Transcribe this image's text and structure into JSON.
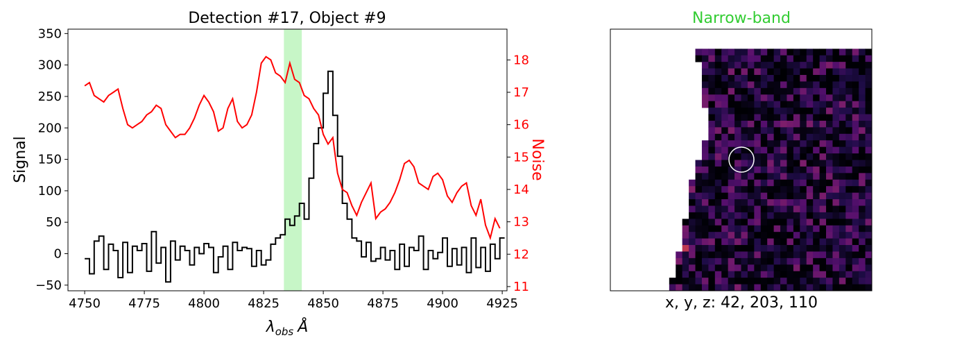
{
  "chart_data": [
    {
      "type": "line",
      "title": "Detection #17, Object #9",
      "xlabel_base": "λ",
      "xlabel_sub": "obs",
      "xlabel_unit": "Å",
      "ylabel": "Signal",
      "y2label": "Noise",
      "xlim": [
        4743,
        4927
      ],
      "ylim": [
        -59,
        357
      ],
      "y2lim": [
        10.87,
        18.95
      ],
      "xticks": [
        4750,
        4775,
        4800,
        4825,
        4850,
        4875,
        4900,
        4925
      ],
      "yticks": [
        -50,
        0,
        50,
        100,
        150,
        200,
        250,
        300,
        350
      ],
      "y2ticks": [
        11,
        12,
        13,
        14,
        15,
        16,
        17,
        18
      ],
      "colors": {
        "signal": "#000000",
        "noise": "#ff0000",
        "highlight": "#90ee90",
        "noise_axis": "#ff0000"
      },
      "highlight_band": [
        4833.5,
        4841
      ],
      "series": [
        {
          "key": "signal",
          "style": "step",
          "axis": "left",
          "x": [
            4751,
            4753,
            4755,
            4757,
            4759,
            4761,
            4763,
            4765,
            4767,
            4769,
            4771,
            4773,
            4775,
            4777,
            4779,
            4781,
            4783,
            4785,
            4787,
            4789,
            4791,
            4793,
            4795,
            4797,
            4799,
            4801,
            4803,
            4805,
            4807,
            4809,
            4811,
            4813,
            4815,
            4817,
            4819,
            4821,
            4823,
            4825,
            4827,
            4829,
            4831,
            4833,
            4835,
            4837,
            4839,
            4841,
            4843,
            4845,
            4847,
            4849,
            4851,
            4853,
            4855,
            4857,
            4859,
            4861,
            4863,
            4865,
            4867,
            4869,
            4871,
            4873,
            4875,
            4877,
            4879,
            4881,
            4883,
            4885,
            4887,
            4889,
            4891,
            4893,
            4895,
            4897,
            4899,
            4901,
            4903,
            4905,
            4907,
            4909,
            4911,
            4913,
            4915,
            4917,
            4919,
            4921,
            4923,
            4925
          ],
          "values": [
            -8,
            -32,
            20,
            28,
            -25,
            15,
            5,
            -38,
            18,
            -30,
            12,
            5,
            16,
            -28,
            35,
            -15,
            10,
            -45,
            20,
            -10,
            12,
            5,
            -18,
            10,
            0,
            16,
            10,
            -30,
            -5,
            12,
            -25,
            18,
            5,
            10,
            8,
            -20,
            5,
            -18,
            -10,
            15,
            25,
            30,
            55,
            45,
            60,
            80,
            55,
            120,
            175,
            200,
            255,
            290,
            220,
            155,
            80,
            55,
            25,
            20,
            -5,
            18,
            -12,
            -8,
            10,
            -10,
            5,
            -25,
            15,
            -20,
            10,
            5,
            28,
            -25,
            5,
            -8,
            2,
            25,
            -20,
            8,
            -18,
            10,
            -30,
            25,
            -22,
            10,
            -28,
            15,
            -8,
            25
          ]
        },
        {
          "key": "noise",
          "style": "line",
          "axis": "right",
          "x": [
            4750,
            4752,
            4754,
            4756,
            4758,
            4760,
            4762,
            4764,
            4766,
            4768,
            4770,
            4772,
            4774,
            4776,
            4778,
            4780,
            4782,
            4784,
            4786,
            4788,
            4790,
            4792,
            4794,
            4796,
            4798,
            4800,
            4802,
            4804,
            4806,
            4808,
            4810,
            4812,
            4814,
            4816,
            4818,
            4820,
            4822,
            4824,
            4826,
            4828,
            4830,
            4832,
            4834,
            4836,
            4838,
            4840,
            4842,
            4844,
            4846,
            4848,
            4850,
            4852,
            4854,
            4856,
            4858,
            4860,
            4862,
            4864,
            4866,
            4868,
            4870,
            4872,
            4874,
            4876,
            4878,
            4880,
            4882,
            4884,
            4886,
            4888,
            4890,
            4892,
            4894,
            4896,
            4898,
            4900,
            4902,
            4904,
            4906,
            4908,
            4910,
            4912,
            4914,
            4916,
            4918,
            4920,
            4922,
            4924
          ],
          "values": [
            17.2,
            17.3,
            16.9,
            16.8,
            16.7,
            16.9,
            17.0,
            17.1,
            16.5,
            16.0,
            15.9,
            16.0,
            16.1,
            16.3,
            16.4,
            16.6,
            16.5,
            16.0,
            15.8,
            15.6,
            15.7,
            15.7,
            15.9,
            16.2,
            16.6,
            16.9,
            16.7,
            16.4,
            15.8,
            15.9,
            16.5,
            16.8,
            16.1,
            15.9,
            16.0,
            16.3,
            17.0,
            17.9,
            18.1,
            18.0,
            17.6,
            17.5,
            17.3,
            17.9,
            17.4,
            17.3,
            16.9,
            16.8,
            16.5,
            16.3,
            15.7,
            15.4,
            15.6,
            14.5,
            14.0,
            13.9,
            13.5,
            13.2,
            13.6,
            13.9,
            14.2,
            13.1,
            13.3,
            13.4,
            13.6,
            13.9,
            14.3,
            14.8,
            14.9,
            14.7,
            14.2,
            14.1,
            14.0,
            14.4,
            14.5,
            14.3,
            13.8,
            13.6,
            13.9,
            14.1,
            14.2,
            13.5,
            13.2,
            13.7,
            12.9,
            12.5,
            13.1,
            12.8
          ]
        }
      ]
    },
    {
      "type": "heatmap",
      "title": "Narrow-band",
      "title_color": "#33cc33",
      "caption": "x, y, z: 42, 203, 110",
      "colormap": "inferno",
      "grid_cols": 40,
      "grid_rows": 40,
      "peak_cell": [
        8,
        19
      ],
      "marker": "circle",
      "marker_color": "#ffffff",
      "edge_cols_left": [
        40,
        40,
        40,
        13,
        13,
        14,
        14,
        14,
        14,
        14,
        14,
        14,
        15,
        15,
        15,
        15,
        15,
        14,
        14,
        14,
        13,
        13,
        13,
        12,
        12,
        12,
        12,
        12,
        12,
        11,
        11,
        11,
        11,
        11,
        10,
        10,
        10,
        10,
        9,
        9
      ]
    }
  ]
}
